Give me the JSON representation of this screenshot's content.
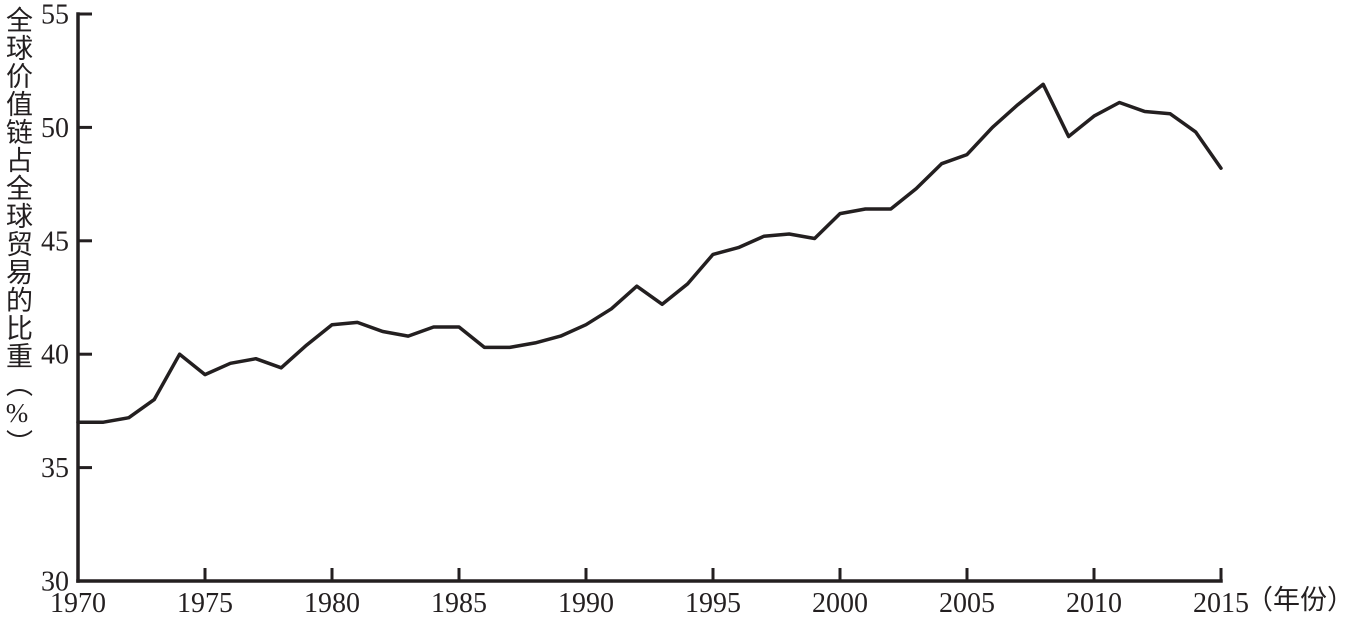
{
  "figure": {
    "background": "#ffffff",
    "ink_color": "#231f20"
  },
  "chart_data": {
    "type": "line",
    "title": "",
    "ylabel": "全球价值链占全球贸易的比重（%）",
    "xlabel": "",
    "x_unit_label": "（年份）",
    "xlim": [
      1970,
      2015
    ],
    "ylim": [
      30,
      55
    ],
    "xticks": [
      1970,
      1975,
      1980,
      1985,
      1990,
      1995,
      2000,
      2005,
      2010,
      2015
    ],
    "yticks": [
      30,
      35,
      40,
      45,
      50,
      55
    ],
    "grid": false,
    "legend_position": "none",
    "line_color": "#231f20",
    "line_width": 3.5,
    "series": [
      {
        "name": "全球价值链占全球贸易的比重",
        "x": [
          1970,
          1971,
          1972,
          1973,
          1974,
          1975,
          1976,
          1977,
          1978,
          1979,
          1980,
          1981,
          1982,
          1983,
          1984,
          1985,
          1986,
          1987,
          1988,
          1989,
          1990,
          1991,
          1992,
          1993,
          1994,
          1995,
          1996,
          1997,
          1998,
          1999,
          2000,
          2001,
          2002,
          2003,
          2004,
          2005,
          2006,
          2007,
          2008,
          2009,
          2010,
          2011,
          2012,
          2013,
          2014,
          2015
        ],
        "values": [
          37.0,
          37.0,
          37.2,
          38.0,
          40.0,
          39.1,
          39.6,
          39.8,
          39.4,
          40.4,
          41.3,
          41.4,
          41.0,
          40.8,
          41.2,
          41.2,
          40.3,
          40.3,
          40.5,
          40.8,
          41.3,
          42.0,
          43.0,
          42.2,
          43.1,
          44.4,
          44.7,
          45.2,
          45.3,
          45.1,
          46.2,
          46.4,
          46.4,
          47.3,
          48.4,
          48.8,
          50.0,
          51.0,
          51.9,
          49.6,
          50.5,
          51.1,
          50.7,
          50.6,
          49.8,
          48.2
        ]
      }
    ]
  }
}
